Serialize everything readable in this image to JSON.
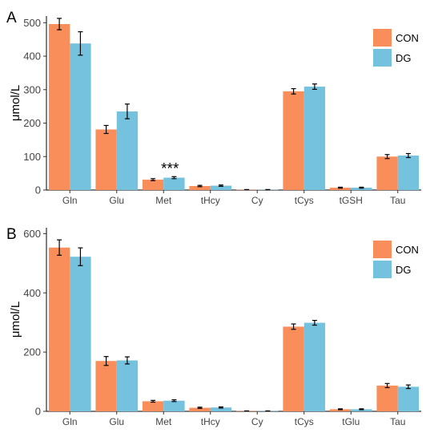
{
  "chart_data": [
    {
      "type": "bar",
      "panel_label": "A",
      "ylabel": "μmol/L",
      "ylim": [
        0,
        520
      ],
      "yticks": [
        0,
        100,
        200,
        300,
        400,
        500
      ],
      "grid": false,
      "legend": "top-right",
      "categories": [
        "Gln",
        "Glu",
        "Met",
        "tHcy",
        "Cy",
        "tCys",
        "tGSH",
        "Tau"
      ],
      "series": [
        {
          "name": "CON",
          "color": "#f98e5a",
          "values": [
            496,
            181,
            31,
            12,
            1,
            295,
            7,
            100
          ],
          "errors": [
            17,
            12,
            3,
            2,
            0.5,
            8,
            1.5,
            6
          ]
        },
        {
          "name": "DG",
          "color": "#74c2de",
          "values": [
            438,
            235,
            37,
            13,
            1,
            309,
            7,
            103
          ],
          "errors": [
            35,
            22,
            3,
            2,
            0.5,
            8,
            1.5,
            6
          ]
        }
      ],
      "annotations": [
        {
          "category": "Met",
          "text": "***"
        }
      ]
    },
    {
      "type": "bar",
      "panel_label": "B",
      "ylabel": "μmol/L",
      "ylim": [
        0,
        620
      ],
      "yticks": [
        0,
        200,
        400,
        600
      ],
      "grid": false,
      "legend": "top-right",
      "categories": [
        "Gln",
        "Glu",
        "Met",
        "tHcy",
        "Cy",
        "tCys",
        "tGlu",
        "Tau"
      ],
      "series": [
        {
          "name": "CON",
          "color": "#f98e5a",
          "values": [
            553,
            170,
            34,
            12,
            1,
            286,
            7,
            87
          ],
          "errors": [
            26,
            15,
            3,
            2,
            0.5,
            9,
            1.5,
            7
          ]
        },
        {
          "name": "DG",
          "color": "#74c2de",
          "values": [
            522,
            172,
            36,
            13,
            1,
            299,
            7,
            83
          ],
          "errors": [
            30,
            12,
            3,
            2,
            0.5,
            8,
            1.5,
            6
          ]
        }
      ],
      "annotations": []
    }
  ]
}
